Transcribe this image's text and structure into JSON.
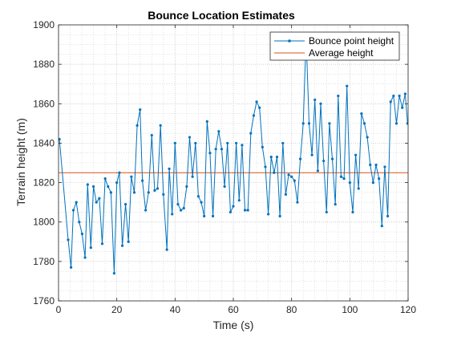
{
  "chart_data": {
    "type": "line",
    "title": "Bounce Location Estimates",
    "xlabel": "Time (s)",
    "ylabel": "Terrain height (m)",
    "xlim": [
      0,
      120
    ],
    "ylim": [
      1760,
      1900
    ],
    "xticks": [
      0,
      20,
      40,
      60,
      80,
      100,
      120
    ],
    "yticks": [
      1760,
      1780,
      1800,
      1820,
      1840,
      1860,
      1880,
      1900
    ],
    "grid": "major and minor, dotted",
    "legend_position": "top-right",
    "series": [
      {
        "name": "Bounce point height",
        "color": "#0072BD",
        "marker": "dot",
        "points": [
          [
            0.3,
            1842
          ],
          [
            3.3,
            1791
          ],
          [
            4.3,
            1777
          ],
          [
            5.1,
            1806
          ],
          [
            6.1,
            1810
          ],
          [
            7.1,
            1800
          ],
          [
            8.1,
            1794
          ],
          [
            9.1,
            1782
          ],
          [
            10.0,
            1819
          ],
          [
            11.1,
            1787
          ],
          [
            12.0,
            1818
          ],
          [
            13.0,
            1810
          ],
          [
            14.0,
            1812
          ],
          [
            15.0,
            1789
          ],
          [
            16.0,
            1822
          ],
          [
            17.0,
            1818
          ],
          [
            18.0,
            1815
          ],
          [
            19.1,
            1774
          ],
          [
            20.0,
            1820
          ],
          [
            20.9,
            1825
          ],
          [
            21.9,
            1788
          ],
          [
            23.0,
            1809
          ],
          [
            24.0,
            1790
          ],
          [
            25.0,
            1823
          ],
          [
            26.0,
            1815
          ],
          [
            27.0,
            1849
          ],
          [
            28.0,
            1857
          ],
          [
            28.8,
            1821
          ],
          [
            29.9,
            1806
          ],
          [
            30.9,
            1815
          ],
          [
            32.0,
            1844
          ],
          [
            33.0,
            1816
          ],
          [
            34.0,
            1817
          ],
          [
            35.0,
            1849
          ],
          [
            36.0,
            1814
          ],
          [
            37.2,
            1786
          ],
          [
            38.0,
            1827
          ],
          [
            39.0,
            1804
          ],
          [
            40.0,
            1840
          ],
          [
            41.0,
            1809
          ],
          [
            42.0,
            1806
          ],
          [
            43.0,
            1807
          ],
          [
            44.0,
            1818
          ],
          [
            45.0,
            1843
          ],
          [
            46.0,
            1823
          ],
          [
            47.0,
            1840
          ],
          [
            48.0,
            1813
          ],
          [
            49.0,
            1810
          ],
          [
            50.0,
            1803
          ],
          [
            51.0,
            1851
          ],
          [
            52.0,
            1835
          ],
          [
            53.0,
            1803
          ],
          [
            54.0,
            1837
          ],
          [
            55.0,
            1846
          ],
          [
            56.0,
            1837
          ],
          [
            57.0,
            1818
          ],
          [
            58.0,
            1840
          ],
          [
            59.0,
            1805
          ],
          [
            60.0,
            1808
          ],
          [
            61.0,
            1840
          ],
          [
            62.0,
            1811
          ],
          [
            63.0,
            1839
          ],
          [
            64.0,
            1806
          ],
          [
            65.0,
            1806
          ],
          [
            66.0,
            1845
          ],
          [
            67.0,
            1854
          ],
          [
            68.0,
            1861
          ],
          [
            69.0,
            1858
          ],
          [
            70.0,
            1838
          ],
          [
            71.0,
            1828
          ],
          [
            72.0,
            1804
          ],
          [
            73.0,
            1833
          ],
          [
            74.0,
            1825
          ],
          [
            75.0,
            1833
          ],
          [
            76.0,
            1803
          ],
          [
            77.0,
            1840
          ],
          [
            78.0,
            1814
          ],
          [
            79.0,
            1824
          ],
          [
            80.0,
            1823
          ],
          [
            81.0,
            1821
          ],
          [
            82.0,
            1810
          ],
          [
            83.0,
            1832
          ],
          [
            84.0,
            1850
          ],
          [
            85.0,
            1894
          ],
          [
            86.0,
            1850
          ],
          [
            87.0,
            1834
          ],
          [
            88.0,
            1862
          ],
          [
            89.0,
            1826
          ],
          [
            90.0,
            1860
          ],
          [
            91.0,
            1831
          ],
          [
            92.0,
            1805
          ],
          [
            93.0,
            1850
          ],
          [
            94.0,
            1832
          ],
          [
            95.0,
            1809
          ],
          [
            96.0,
            1864
          ],
          [
            97.0,
            1823
          ],
          [
            98.0,
            1822
          ],
          [
            99.0,
            1869
          ],
          [
            100.0,
            1820
          ],
          [
            101.0,
            1805
          ],
          [
            102.0,
            1834
          ],
          [
            103.0,
            1817
          ],
          [
            104.0,
            1855
          ],
          [
            105.0,
            1850
          ],
          [
            106.0,
            1843
          ],
          [
            107.0,
            1829
          ],
          [
            108.0,
            1820
          ],
          [
            109.0,
            1829
          ],
          [
            110.0,
            1822
          ],
          [
            111.0,
            1798
          ],
          [
            112.0,
            1828
          ],
          [
            113.0,
            1803
          ],
          [
            114.0,
            1861
          ],
          [
            115.0,
            1864
          ],
          [
            116.0,
            1850
          ],
          [
            117.0,
            1864
          ],
          [
            118.0,
            1858
          ],
          [
            119.0,
            1865
          ],
          [
            119.8,
            1850
          ]
        ]
      },
      {
        "name": "Average height",
        "color": "#D95319",
        "constant": 1825
      }
    ]
  }
}
